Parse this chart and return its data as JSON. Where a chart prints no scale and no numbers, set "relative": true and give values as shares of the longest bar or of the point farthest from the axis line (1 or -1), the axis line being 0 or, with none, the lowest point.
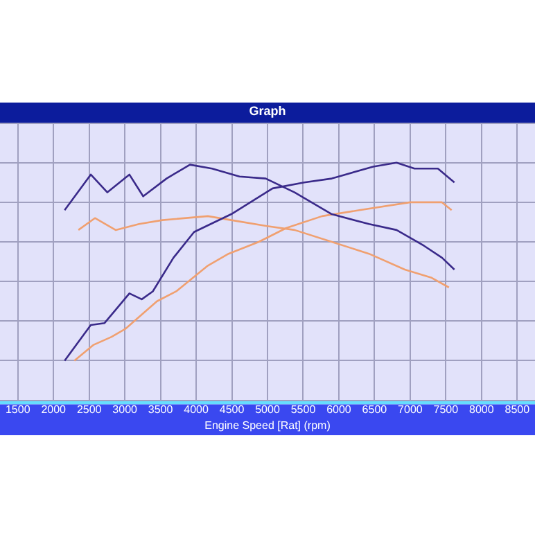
{
  "chart_data": {
    "type": "line",
    "title": "Graph",
    "xlabel": "Engine Speed [Rat] (rpm)",
    "relative": true,
    "grid": true,
    "marker": "none",
    "line_style": "solid",
    "xlim": [
      1250,
      8750
    ],
    "xticks": [
      1500,
      2000,
      2500,
      3000,
      3500,
      4000,
      4500,
      5000,
      5500,
      6000,
      6500,
      7000,
      7500,
      8000,
      8500
    ],
    "series": [
      {
        "color": "#3a2a8a",
        "x": [
          2156,
          2523,
          2755,
          3064,
          3257,
          3585,
          3913,
          4222,
          4608,
          4975,
          5380,
          5901,
          6423,
          6809,
          7195,
          7446,
          7620
        ],
        "values": [
          0.76,
          0.94,
          0.85,
          0.94,
          0.83,
          0.92,
          0.99,
          0.97,
          0.93,
          0.92,
          0.85,
          0.74,
          0.69,
          0.66,
          0.58,
          0.52,
          0.46
        ]
      },
      {
        "color": "#3a2a8a",
        "x": [
          2156,
          2523,
          2716,
          3064,
          3237,
          3392,
          3682,
          3971,
          4492,
          5071,
          5515,
          5901,
          6481,
          6809,
          7061,
          7389,
          7620
        ],
        "values": [
          0,
          0.18,
          0.19,
          0.34,
          0.31,
          0.35,
          0.52,
          0.65,
          0.74,
          0.87,
          0.9,
          0.92,
          0.98,
          1,
          0.97,
          0.97,
          0.9
        ]
      },
      {
        "color": "#f0a070",
        "x": [
          2349,
          2581,
          2871,
          3199,
          3527,
          4164,
          4492,
          4994,
          5380,
          5901,
          6423,
          6925,
          7292,
          7543
        ],
        "values": [
          0.66,
          0.72,
          0.66,
          0.69,
          0.71,
          0.73,
          0.71,
          0.68,
          0.66,
          0.6,
          0.54,
          0.46,
          0.42,
          0.37
        ]
      },
      {
        "color": "#f0a070",
        "x": [
          2292,
          2562,
          2813,
          3006,
          3450,
          3720,
          4164,
          4454,
          4878,
          5264,
          5766,
          6288,
          7002,
          7446,
          7581
        ],
        "values": [
          0,
          0.08,
          0.12,
          0.16,
          0.3,
          0.35,
          0.48,
          0.54,
          0.6,
          0.67,
          0.73,
          0.76,
          0.8,
          0.8,
          0.76
        ]
      }
    ]
  }
}
